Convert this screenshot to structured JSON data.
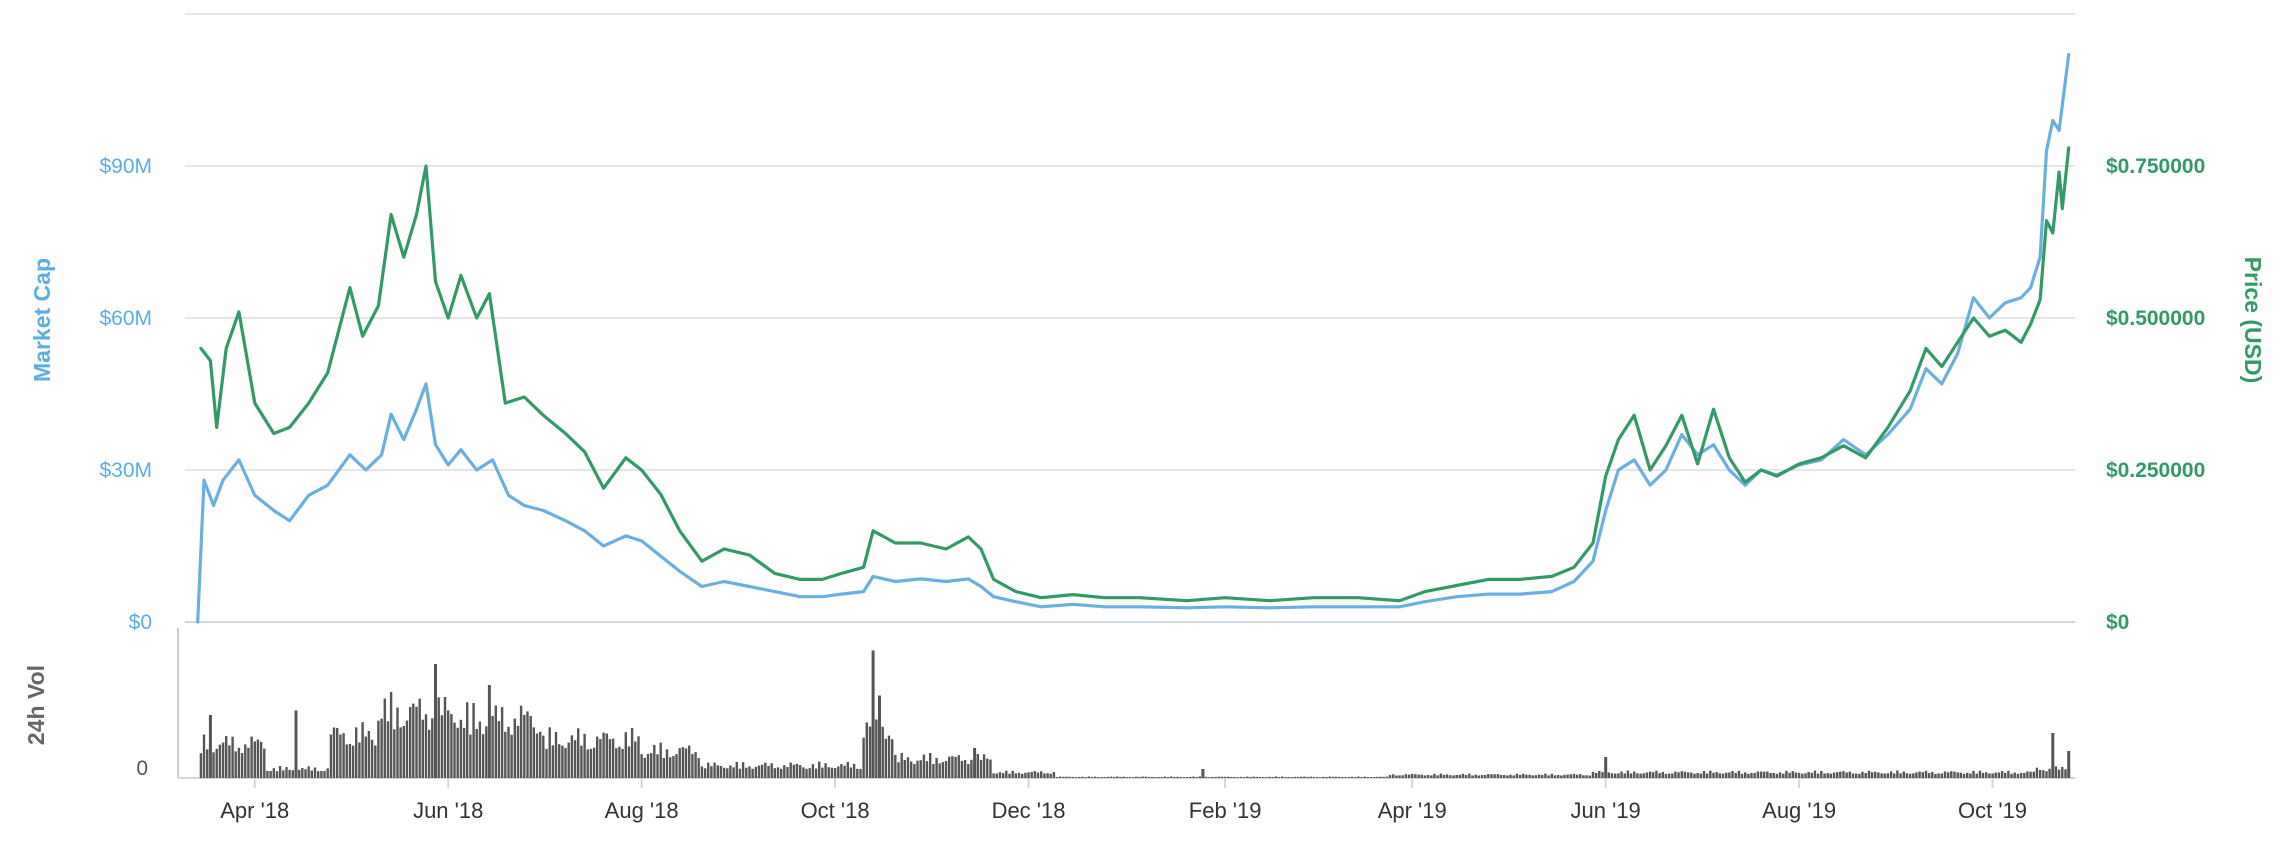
{
  "chart_data": {
    "type": "line",
    "ylabel_left": "Market Cap",
    "ylabel_right": "Price (USD)",
    "volume_label": "24h Vol",
    "left_ticks": [
      {
        "value": 0,
        "label": "$0"
      },
      {
        "value": 30000000,
        "label": "$30M"
      },
      {
        "value": 60000000,
        "label": "$60M"
      },
      {
        "value": 90000000,
        "label": "$90M"
      }
    ],
    "right_ticks": [
      {
        "value": 0,
        "label": "$0"
      },
      {
        "value": 0.25,
        "label": "$0.250000"
      },
      {
        "value": 0.5,
        "label": "$0.500000"
      },
      {
        "value": 0.75,
        "label": "$0.750000"
      }
    ],
    "volume_ticks": [
      {
        "value": 0,
        "label": "0"
      }
    ],
    "x_ticks": [
      {
        "date": "2018-04-01",
        "label": "Apr '18"
      },
      {
        "date": "2018-06-01",
        "label": "Jun '18"
      },
      {
        "date": "2018-08-01",
        "label": "Aug '18"
      },
      {
        "date": "2018-10-01",
        "label": "Oct '18"
      },
      {
        "date": "2018-12-01",
        "label": "Dec '18"
      },
      {
        "date": "2019-02-01",
        "label": "Feb '19"
      },
      {
        "date": "2019-04-01",
        "label": "Apr '19"
      },
      {
        "date": "2019-06-01",
        "label": "Jun '19"
      },
      {
        "date": "2019-08-01",
        "label": "Aug '19"
      },
      {
        "date": "2019-10-01",
        "label": "Oct '19"
      }
    ],
    "left_ylim": [
      0,
      120000000
    ],
    "right_ylim": [
      0,
      1.0
    ],
    "grid": true,
    "colors": {
      "market_cap": "#6aafdf",
      "price": "#339966",
      "volume": "#555555",
      "grid": "#e6e6e6"
    },
    "series": [
      {
        "name": "Market Cap",
        "axis": "left",
        "points": [
          [
            "2018-03-14",
            0
          ],
          [
            "2018-03-16",
            28000000
          ],
          [
            "2018-03-19",
            23000000
          ],
          [
            "2018-03-22",
            28000000
          ],
          [
            "2018-03-27",
            32000000
          ],
          [
            "2018-04-01",
            25000000
          ],
          [
            "2018-04-07",
            22000000
          ],
          [
            "2018-04-12",
            20000000
          ],
          [
            "2018-04-18",
            25000000
          ],
          [
            "2018-04-24",
            27000000
          ],
          [
            "2018-05-01",
            33000000
          ],
          [
            "2018-05-06",
            30000000
          ],
          [
            "2018-05-11",
            33000000
          ],
          [
            "2018-05-14",
            41000000
          ],
          [
            "2018-05-18",
            36000000
          ],
          [
            "2018-05-22",
            42000000
          ],
          [
            "2018-05-25",
            47000000
          ],
          [
            "2018-05-28",
            35000000
          ],
          [
            "2018-06-01",
            31000000
          ],
          [
            "2018-06-05",
            34000000
          ],
          [
            "2018-06-10",
            30000000
          ],
          [
            "2018-06-15",
            32000000
          ],
          [
            "2018-06-20",
            25000000
          ],
          [
            "2018-06-25",
            23000000
          ],
          [
            "2018-07-01",
            22000000
          ],
          [
            "2018-07-08",
            20000000
          ],
          [
            "2018-07-14",
            18000000
          ],
          [
            "2018-07-20",
            15000000
          ],
          [
            "2018-07-27",
            17000000
          ],
          [
            "2018-08-01",
            16000000
          ],
          [
            "2018-08-07",
            13000000
          ],
          [
            "2018-08-13",
            10000000
          ],
          [
            "2018-08-20",
            7000000
          ],
          [
            "2018-08-27",
            8000000
          ],
          [
            "2018-09-04",
            7000000
          ],
          [
            "2018-09-12",
            6000000
          ],
          [
            "2018-09-20",
            5000000
          ],
          [
            "2018-09-27",
            5000000
          ],
          [
            "2018-10-03",
            5500000
          ],
          [
            "2018-10-10",
            6000000
          ],
          [
            "2018-10-13",
            9000000
          ],
          [
            "2018-10-20",
            8000000
          ],
          [
            "2018-10-28",
            8500000
          ],
          [
            "2018-11-05",
            8000000
          ],
          [
            "2018-11-12",
            8500000
          ],
          [
            "2018-11-16",
            7000000
          ],
          [
            "2018-11-20",
            5000000
          ],
          [
            "2018-11-27",
            4000000
          ],
          [
            "2018-12-05",
            3000000
          ],
          [
            "2018-12-15",
            3500000
          ],
          [
            "2018-12-25",
            3000000
          ],
          [
            "2019-01-05",
            3000000
          ],
          [
            "2019-01-20",
            2800000
          ],
          [
            "2019-02-01",
            3000000
          ],
          [
            "2019-02-15",
            2800000
          ],
          [
            "2019-03-01",
            3000000
          ],
          [
            "2019-03-15",
            3000000
          ],
          [
            "2019-03-28",
            3000000
          ],
          [
            "2019-04-05",
            4000000
          ],
          [
            "2019-04-15",
            5000000
          ],
          [
            "2019-04-25",
            5500000
          ],
          [
            "2019-05-05",
            5500000
          ],
          [
            "2019-05-15",
            6000000
          ],
          [
            "2019-05-22",
            8000000
          ],
          [
            "2019-05-28",
            12000000
          ],
          [
            "2019-06-01",
            22000000
          ],
          [
            "2019-06-05",
            30000000
          ],
          [
            "2019-06-10",
            32000000
          ],
          [
            "2019-06-15",
            27000000
          ],
          [
            "2019-06-20",
            30000000
          ],
          [
            "2019-06-25",
            37000000
          ],
          [
            "2019-06-30",
            33000000
          ],
          [
            "2019-07-05",
            35000000
          ],
          [
            "2019-07-10",
            30000000
          ],
          [
            "2019-07-15",
            27000000
          ],
          [
            "2019-07-20",
            30000000
          ],
          [
            "2019-07-25",
            29000000
          ],
          [
            "2019-08-01",
            31000000
          ],
          [
            "2019-08-08",
            32000000
          ],
          [
            "2019-08-15",
            36000000
          ],
          [
            "2019-08-22",
            33000000
          ],
          [
            "2019-08-29",
            37000000
          ],
          [
            "2019-09-05",
            42000000
          ],
          [
            "2019-09-10",
            50000000
          ],
          [
            "2019-09-15",
            47000000
          ],
          [
            "2019-09-20",
            53000000
          ],
          [
            "2019-09-25",
            64000000
          ],
          [
            "2019-09-30",
            60000000
          ],
          [
            "2019-10-05",
            63000000
          ],
          [
            "2019-10-10",
            64000000
          ],
          [
            "2019-10-13",
            66000000
          ],
          [
            "2019-10-16",
            72000000
          ],
          [
            "2019-10-18",
            93000000
          ],
          [
            "2019-10-20",
            99000000
          ],
          [
            "2019-10-22",
            97000000
          ],
          [
            "2019-10-25",
            112000000
          ]
        ]
      },
      {
        "name": "Price (USD)",
        "axis": "right",
        "points": [
          [
            "2018-03-15",
            0.45
          ],
          [
            "2018-03-18",
            0.43
          ],
          [
            "2018-03-20",
            0.32
          ],
          [
            "2018-03-23",
            0.45
          ],
          [
            "2018-03-27",
            0.51
          ],
          [
            "2018-04-01",
            0.36
          ],
          [
            "2018-04-07",
            0.31
          ],
          [
            "2018-04-12",
            0.32
          ],
          [
            "2018-04-18",
            0.36
          ],
          [
            "2018-04-24",
            0.41
          ],
          [
            "2018-05-01",
            0.55
          ],
          [
            "2018-05-05",
            0.47
          ],
          [
            "2018-05-10",
            0.52
          ],
          [
            "2018-05-14",
            0.67
          ],
          [
            "2018-05-18",
            0.6
          ],
          [
            "2018-05-22",
            0.67
          ],
          [
            "2018-05-25",
            0.75
          ],
          [
            "2018-05-28",
            0.56
          ],
          [
            "2018-06-01",
            0.5
          ],
          [
            "2018-06-05",
            0.57
          ],
          [
            "2018-06-10",
            0.5
          ],
          [
            "2018-06-14",
            0.54
          ],
          [
            "2018-06-19",
            0.36
          ],
          [
            "2018-06-25",
            0.37
          ],
          [
            "2018-07-01",
            0.34
          ],
          [
            "2018-07-08",
            0.31
          ],
          [
            "2018-07-14",
            0.28
          ],
          [
            "2018-07-20",
            0.22
          ],
          [
            "2018-07-27",
            0.27
          ],
          [
            "2018-08-01",
            0.25
          ],
          [
            "2018-08-07",
            0.21
          ],
          [
            "2018-08-13",
            0.15
          ],
          [
            "2018-08-20",
            0.1
          ],
          [
            "2018-08-27",
            0.12
          ],
          [
            "2018-09-04",
            0.11
          ],
          [
            "2018-09-12",
            0.08
          ],
          [
            "2018-09-20",
            0.07
          ],
          [
            "2018-09-27",
            0.07
          ],
          [
            "2018-10-03",
            0.08
          ],
          [
            "2018-10-10",
            0.09
          ],
          [
            "2018-10-13",
            0.15
          ],
          [
            "2018-10-20",
            0.13
          ],
          [
            "2018-10-28",
            0.13
          ],
          [
            "2018-11-05",
            0.12
          ],
          [
            "2018-11-12",
            0.14
          ],
          [
            "2018-11-16",
            0.12
          ],
          [
            "2018-11-20",
            0.07
          ],
          [
            "2018-11-27",
            0.05
          ],
          [
            "2018-12-05",
            0.04
          ],
          [
            "2018-12-15",
            0.045
          ],
          [
            "2018-12-25",
            0.04
          ],
          [
            "2019-01-05",
            0.04
          ],
          [
            "2019-01-20",
            0.035
          ],
          [
            "2019-02-01",
            0.04
          ],
          [
            "2019-02-15",
            0.035
          ],
          [
            "2019-03-01",
            0.04
          ],
          [
            "2019-03-15",
            0.04
          ],
          [
            "2019-03-28",
            0.035
          ],
          [
            "2019-04-05",
            0.05
          ],
          [
            "2019-04-15",
            0.06
          ],
          [
            "2019-04-25",
            0.07
          ],
          [
            "2019-05-05",
            0.07
          ],
          [
            "2019-05-15",
            0.075
          ],
          [
            "2019-05-22",
            0.09
          ],
          [
            "2019-05-28",
            0.13
          ],
          [
            "2019-06-01",
            0.24
          ],
          [
            "2019-06-05",
            0.3
          ],
          [
            "2019-06-10",
            0.34
          ],
          [
            "2019-06-15",
            0.25
          ],
          [
            "2019-06-20",
            0.29
          ],
          [
            "2019-06-25",
            0.34
          ],
          [
            "2019-06-30",
            0.26
          ],
          [
            "2019-07-05",
            0.35
          ],
          [
            "2019-07-10",
            0.27
          ],
          [
            "2019-07-15",
            0.23
          ],
          [
            "2019-07-20",
            0.25
          ],
          [
            "2019-07-25",
            0.24
          ],
          [
            "2019-08-01",
            0.26
          ],
          [
            "2019-08-08",
            0.27
          ],
          [
            "2019-08-15",
            0.29
          ],
          [
            "2019-08-22",
            0.27
          ],
          [
            "2019-08-29",
            0.32
          ],
          [
            "2019-09-05",
            0.38
          ],
          [
            "2019-09-10",
            0.45
          ],
          [
            "2019-09-15",
            0.42
          ],
          [
            "2019-09-20",
            0.46
          ],
          [
            "2019-09-25",
            0.5
          ],
          [
            "2019-09-30",
            0.47
          ],
          [
            "2019-10-05",
            0.48
          ],
          [
            "2019-10-10",
            0.46
          ],
          [
            "2019-10-13",
            0.49
          ],
          [
            "2019-10-16",
            0.53
          ],
          [
            "2019-10-18",
            0.66
          ],
          [
            "2019-10-20",
            0.64
          ],
          [
            "2019-10-22",
            0.74
          ],
          [
            "2019-10-23",
            0.68
          ],
          [
            "2019-10-25",
            0.78
          ]
        ]
      }
    ],
    "volume": {
      "segments": [
        {
          "from": "2018-03-15",
          "to": "2018-04-05",
          "level": 0.3
        },
        {
          "from": "2018-04-05",
          "to": "2018-04-25",
          "level": 0.08
        },
        {
          "from": "2018-04-25",
          "to": "2018-05-10",
          "level": 0.38
        },
        {
          "from": "2018-05-10",
          "to": "2018-06-05",
          "level": 0.58
        },
        {
          "from": "2018-06-05",
          "to": "2018-07-01",
          "level": 0.52
        },
        {
          "from": "2018-07-01",
          "to": "2018-08-01",
          "level": 0.34
        },
        {
          "from": "2018-08-01",
          "to": "2018-08-20",
          "level": 0.24
        },
        {
          "from": "2018-08-20",
          "to": "2018-10-10",
          "level": 0.11
        },
        {
          "from": "2018-10-10",
          "to": "2018-10-20",
          "level": 0.45
        },
        {
          "from": "2018-10-20",
          "to": "2018-11-20",
          "level": 0.17
        },
        {
          "from": "2018-11-20",
          "to": "2018-12-10",
          "level": 0.05
        },
        {
          "from": "2018-12-10",
          "to": "2019-03-25",
          "level": 0.01
        },
        {
          "from": "2019-03-25",
          "to": "2019-05-28",
          "level": 0.03
        },
        {
          "from": "2019-05-28",
          "to": "2019-10-15",
          "level": 0.05
        },
        {
          "from": "2019-10-15",
          "to": "2019-10-25",
          "level": 0.08
        }
      ],
      "spikes": [
        {
          "date": "2018-03-18",
          "level": 0.42
        },
        {
          "date": "2018-04-14",
          "level": 0.45
        },
        {
          "date": "2018-05-28",
          "level": 0.76
        },
        {
          "date": "2018-06-14",
          "level": 0.62
        },
        {
          "date": "2018-10-13",
          "level": 0.85
        },
        {
          "date": "2018-10-15",
          "level": 0.55
        },
        {
          "date": "2018-11-14",
          "level": 0.2
        },
        {
          "date": "2019-01-25",
          "level": 0.06
        },
        {
          "date": "2019-06-01",
          "level": 0.14
        },
        {
          "date": "2019-10-20",
          "level": 0.3
        },
        {
          "date": "2019-10-25",
          "level": 0.18
        }
      ]
    }
  }
}
